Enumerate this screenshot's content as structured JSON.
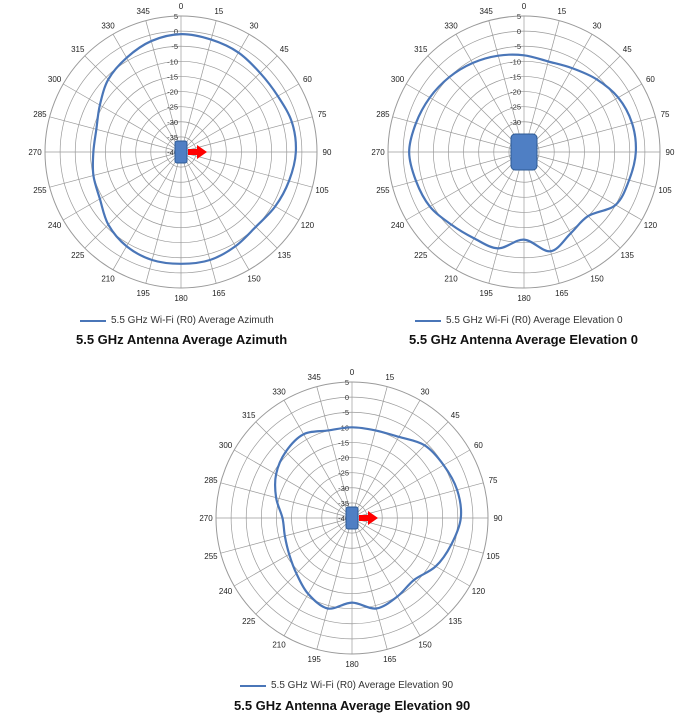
{
  "chart_data": [
    {
      "type": "polar",
      "title": "5.5 GHz Antenna Average Azimuth",
      "legend": "5.5 GHz Wi-Fi (R0) Average Azimuth",
      "series_color": "#4a76b8",
      "device_icon": "antenna-device-with-red-arrow",
      "angle_ticks": [
        "0",
        "15",
        "30",
        "45",
        "60",
        "75",
        "90",
        "105",
        "120",
        "135",
        "150",
        "165",
        "180",
        "195",
        "210",
        "225",
        "240",
        "255",
        "270",
        "285",
        "300",
        "315",
        "330",
        "345"
      ],
      "radial_ticks": [
        5,
        0,
        -5,
        -10,
        -15,
        -20,
        -25,
        -30,
        -35,
        -40
      ],
      "rlim": [
        -40,
        5
      ],
      "angles": [
        0,
        15,
        30,
        45,
        60,
        75,
        90,
        105,
        120,
        135,
        150,
        165,
        180,
        195,
        210,
        225,
        240,
        255,
        270,
        285,
        300,
        315,
        330,
        345
      ],
      "values": [
        -1,
        -1.5,
        -2,
        -3,
        -3,
        -2,
        -2,
        -3,
        -4,
        -5,
        -4,
        -3,
        -3,
        -3,
        -4,
        -6,
        -9,
        -10,
        -11,
        -11,
        -9,
        -6,
        -4,
        -2
      ]
    },
    {
      "type": "polar",
      "title": "5.5 GHz Antenna Average Elevation 0",
      "legend": "5.5 GHz Wi-Fi (R0) Average Elevation 0",
      "series_color": "#4a76b8",
      "device_icon": "antenna-device",
      "angle_ticks": [
        "0",
        "15",
        "30",
        "45",
        "60",
        "75",
        "90",
        "105",
        "120",
        "135",
        "150",
        "165",
        "180",
        "195",
        "210",
        "225",
        "240",
        "255",
        "270",
        "285",
        "300",
        "315",
        "330",
        "345"
      ],
      "radial_ticks": [
        5,
        0,
        -5,
        -10,
        -15,
        -20,
        -25,
        -30,
        -35,
        -40
      ],
      "rlim": [
        -40,
        5
      ],
      "angles": [
        0,
        15,
        30,
        45,
        60,
        75,
        90,
        105,
        120,
        135,
        150,
        165,
        180,
        195,
        210,
        225,
        240,
        255,
        270,
        285,
        300,
        315,
        330,
        345
      ],
      "values": [
        -8,
        -9,
        -8,
        -6,
        -4,
        -3,
        -3,
        -4,
        -5,
        -10,
        -9,
        -6,
        -11,
        -7,
        -7,
        -6,
        -4,
        -3,
        -2,
        -3,
        -4,
        -5,
        -6,
        -7
      ]
    },
    {
      "type": "polar",
      "title": "5.5 GHz Antenna Average Elevation 90",
      "legend": "5.5 GHz Wi-Fi (R0) Average Elevation 90",
      "series_color": "#4a76b8",
      "device_icon": "antenna-device-with-red-arrow",
      "angle_ticks": [
        "0",
        "15",
        "30",
        "45",
        "60",
        "75",
        "90",
        "105",
        "120",
        "135",
        "150",
        "165",
        "180",
        "195",
        "210",
        "225",
        "240",
        "255",
        "270",
        "285",
        "300",
        "315",
        "330",
        "345"
      ],
      "radial_ticks": [
        5,
        0,
        -5,
        -10,
        -15,
        -20,
        -25,
        -30,
        -35,
        -40
      ],
      "rlim": [
        -40,
        5
      ],
      "angles": [
        0,
        15,
        30,
        45,
        60,
        75,
        90,
        105,
        120,
        135,
        150,
        165,
        180,
        195,
        210,
        225,
        240,
        255,
        270,
        285,
        300,
        315,
        330,
        345
      ],
      "values": [
        -10,
        -10,
        -9,
        -6,
        -5,
        -4,
        -4,
        -6,
        -8,
        -11,
        -10,
        -9,
        -12,
        -9,
        -11,
        -14,
        -16,
        -17,
        -17,
        -14,
        -11,
        -9,
        -8,
        -10
      ]
    }
  ]
}
